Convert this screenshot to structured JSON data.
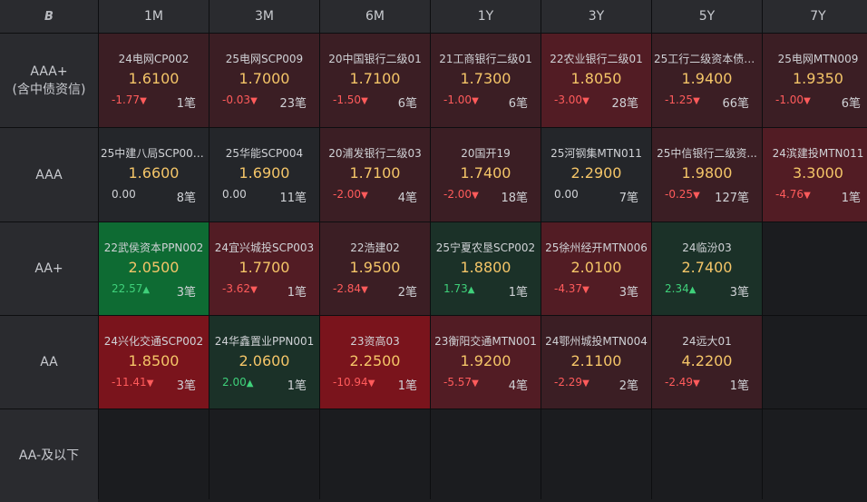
{
  "corner_icon": "logo-icon",
  "corner_glyph": "B",
  "columns": [
    "1M",
    "3M",
    "6M",
    "1Y",
    "3Y",
    "5Y",
    "7Y"
  ],
  "rows": [
    {
      "label_line1": "AAA+",
      "label_line2": "(含中债资信)"
    },
    {
      "label_line1": "AAA",
      "label_line2": ""
    },
    {
      "label_line1": "AA+",
      "label_line2": ""
    },
    {
      "label_line1": "AA",
      "label_line2": ""
    },
    {
      "label_line1": "AA-及以下",
      "label_line2": ""
    }
  ],
  "colors": {
    "dark_red": "#3b1e24",
    "mid_red": "#521c24",
    "bright_red": "#7a141c",
    "dark_green": "#1b3128",
    "bright_green": "#0e6b33",
    "neutral": "#24262a",
    "empty": "#1b1c1f",
    "rate": "#f4c568",
    "negative": "#ff5b5b",
    "positive": "#3fd07a"
  },
  "cells": [
    [
      {
        "name": "24电网CP002",
        "rate": "1.6100",
        "change": "-1.77",
        "dir": "down",
        "count": "1笔",
        "bg": "dark_red"
      },
      {
        "name": "25电网SCP009",
        "rate": "1.7000",
        "change": "-0.03",
        "dir": "down",
        "count": "23笔",
        "bg": "dark_red"
      },
      {
        "name": "20中国银行二级01",
        "rate": "1.7100",
        "change": "-1.50",
        "dir": "down",
        "count": "6笔",
        "bg": "dark_red"
      },
      {
        "name": "21工商银行二级01",
        "rate": "1.7300",
        "change": "-1.00",
        "dir": "down",
        "count": "6笔",
        "bg": "dark_red"
      },
      {
        "name": "22农业银行二级01",
        "rate": "1.8050",
        "change": "-3.00",
        "dir": "down",
        "count": "28笔",
        "bg": "mid_red"
      },
      {
        "name": "25工行二级资本债0...",
        "rate": "1.9400",
        "change": "-1.25",
        "dir": "down",
        "count": "66笔",
        "bg": "dark_red"
      },
      {
        "name": "25电网MTN009",
        "rate": "1.9350",
        "change": "-1.00",
        "dir": "down",
        "count": "6笔",
        "bg": "dark_red"
      }
    ],
    [
      {
        "name": "25中建八局SCP007...",
        "rate": "1.6600",
        "change": "0.00",
        "dir": "flat",
        "count": "8笔",
        "bg": "neutral"
      },
      {
        "name": "25华能SCP004",
        "rate": "1.6900",
        "change": "0.00",
        "dir": "flat",
        "count": "11笔",
        "bg": "neutral"
      },
      {
        "name": "20浦发银行二级03",
        "rate": "1.7100",
        "change": "-2.00",
        "dir": "down",
        "count": "4笔",
        "bg": "dark_red"
      },
      {
        "name": "20国开19",
        "rate": "1.7400",
        "change": "-2.00",
        "dir": "down",
        "count": "18笔",
        "bg": "dark_red"
      },
      {
        "name": "25河钢集MTN011",
        "rate": "2.2900",
        "change": "0.00",
        "dir": "flat",
        "count": "7笔",
        "bg": "neutral"
      },
      {
        "name": "25中信银行二级资...",
        "rate": "1.9800",
        "change": "-0.25",
        "dir": "down",
        "count": "127笔",
        "bg": "dark_red"
      },
      {
        "name": "24滨建投MTN011",
        "rate": "3.3000",
        "change": "-4.76",
        "dir": "down",
        "count": "1笔",
        "bg": "mid_red"
      }
    ],
    [
      {
        "name": "22武侯资本PPN002",
        "rate": "2.0500",
        "change": "22.57",
        "dir": "up",
        "count": "3笔",
        "bg": "bright_green"
      },
      {
        "name": "24宜兴城投SCP003",
        "rate": "1.7700",
        "change": "-3.62",
        "dir": "down",
        "count": "1笔",
        "bg": "mid_red"
      },
      {
        "name": "22浩建02",
        "rate": "1.9500",
        "change": "-2.84",
        "dir": "down",
        "count": "2笔",
        "bg": "dark_red"
      },
      {
        "name": "25宁夏农垦SCP002",
        "rate": "1.8800",
        "change": "1.73",
        "dir": "up",
        "count": "1笔",
        "bg": "dark_green"
      },
      {
        "name": "25徐州经开MTN006",
        "rate": "2.0100",
        "change": "-4.37",
        "dir": "down",
        "count": "3笔",
        "bg": "mid_red"
      },
      {
        "name": "24临汾03",
        "rate": "2.7400",
        "change": "2.34",
        "dir": "up",
        "count": "3笔",
        "bg": "dark_green"
      },
      null
    ],
    [
      {
        "name": "24兴化交通SCP002",
        "rate": "1.8500",
        "change": "-11.41",
        "dir": "down",
        "count": "3笔",
        "bg": "bright_red"
      },
      {
        "name": "24华鑫置业PPN001",
        "rate": "2.0600",
        "change": "2.00",
        "dir": "up",
        "count": "1笔",
        "bg": "dark_green"
      },
      {
        "name": "23资高03",
        "rate": "2.2500",
        "change": "-10.94",
        "dir": "down",
        "count": "1笔",
        "bg": "bright_red"
      },
      {
        "name": "23衡阳交通MTN001",
        "rate": "1.9200",
        "change": "-5.57",
        "dir": "down",
        "count": "4笔",
        "bg": "mid_red"
      },
      {
        "name": "24鄂州城投MTN004",
        "rate": "2.1100",
        "change": "-2.29",
        "dir": "down",
        "count": "2笔",
        "bg": "dark_red"
      },
      {
        "name": "24远大01",
        "rate": "4.2200",
        "change": "-2.49",
        "dir": "down",
        "count": "1笔",
        "bg": "dark_red"
      },
      null
    ],
    [
      null,
      null,
      null,
      null,
      null,
      null,
      null
    ]
  ]
}
